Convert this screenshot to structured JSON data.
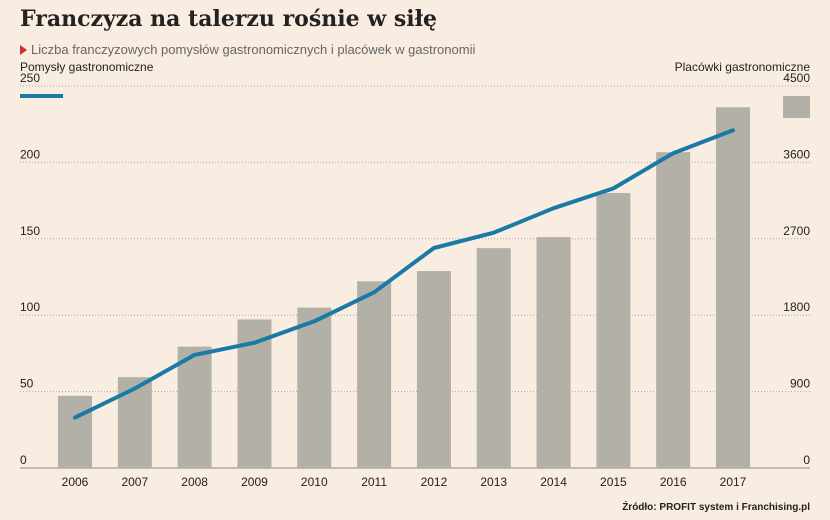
{
  "chart_data": {
    "type": "bar+line",
    "title": "Franczyza na talerzu rośnie w siłę",
    "subtitle": "Liczba franczyzowych pomysłów gastronomicznych i placówek w gastronomii",
    "left_axis_label": "Pomysły gastronomiczne",
    "right_axis_label": "Placówki gastronomiczne",
    "source": "Źródło: PROFIT system i Franchising.pl",
    "categories": [
      "2006",
      "2007",
      "2008",
      "2009",
      "2010",
      "2011",
      "2012",
      "2013",
      "2014",
      "2015",
      "2016",
      "2017"
    ],
    "left_ylim": [
      0,
      250
    ],
    "left_ticks": [
      0,
      50,
      100,
      150,
      200,
      250
    ],
    "right_ylim": [
      0,
      4500
    ],
    "right_ticks": [
      0,
      900,
      1800,
      2700,
      3600,
      4500
    ],
    "series": [
      {
        "name": "Pomysły gastronomiczne",
        "kind": "line",
        "axis": "left",
        "color": "#1a7aa6",
        "values": [
          33,
          52,
          74,
          82,
          96,
          115,
          144,
          154,
          170,
          183,
          206,
          221
        ]
      },
      {
        "name": "Placówki gastronomiczne",
        "kind": "bar",
        "axis": "right",
        "color": "#b3b0a7",
        "values": [
          850,
          1070,
          1430,
          1750,
          1890,
          2200,
          2320,
          2590,
          2720,
          3240,
          3720,
          4250
        ]
      }
    ],
    "grid": true,
    "background": "#f8ede0"
  }
}
